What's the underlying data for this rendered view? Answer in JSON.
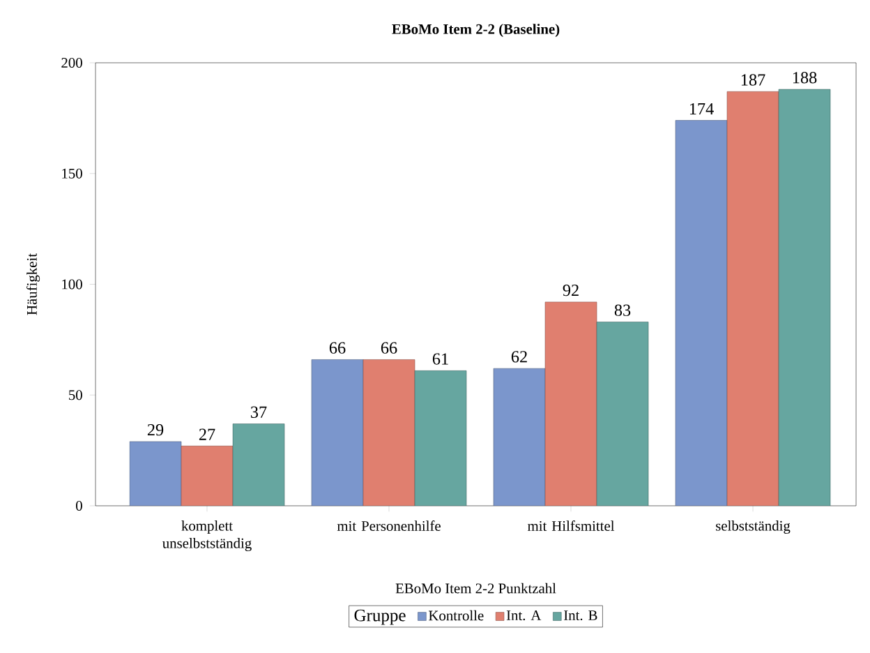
{
  "chart_data": {
    "type": "bar",
    "title": "EBoMo Item 2-2 (Baseline)",
    "xlabel": "EBoMo Item 2-2 Punktzahl",
    "ylabel": "Häufigkeit",
    "legend_title": "Gruppe",
    "categories": [
      "komplett unselbstständig",
      "mit Personenhilfe",
      "mit Hilfsmittel",
      "selbstständig"
    ],
    "series": [
      {
        "name": "Kontrolle",
        "color": "#7b96cc",
        "values": [
          29,
          66,
          62,
          174
        ]
      },
      {
        "name": "Int. A",
        "color": "#e07f6f",
        "values": [
          27,
          66,
          92,
          187
        ]
      },
      {
        "name": "Int. B",
        "color": "#66a6a0",
        "values": [
          37,
          61,
          83,
          188
        ]
      }
    ],
    "ylim": [
      0,
      200
    ],
    "yticks": [
      0,
      50,
      100,
      150,
      200
    ],
    "data_labels": true,
    "grid": false,
    "legend": "bottom"
  }
}
